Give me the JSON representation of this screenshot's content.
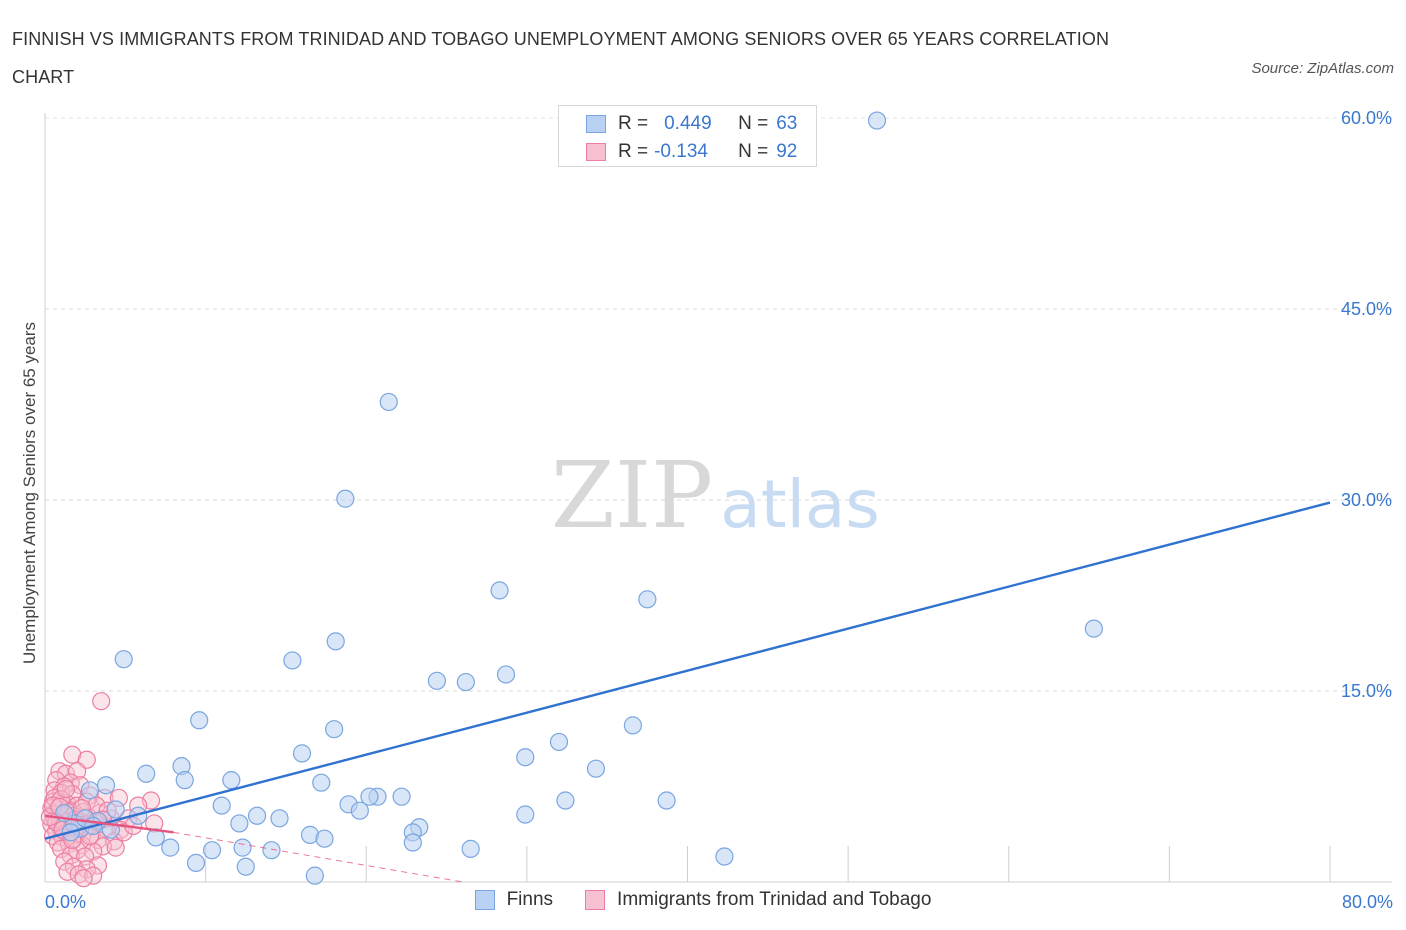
{
  "header": {
    "title": "FINNISH VS IMMIGRANTS FROM TRINIDAD AND TOBAGO UNEMPLOYMENT AMONG SENIORS OVER 65 YEARS CORRELATION CHART",
    "source": "Source: ZipAtlas.com"
  },
  "watermark": {
    "zip": "ZIP",
    "atlas": "atlas"
  },
  "legend": {
    "finns": {
      "r_label": "R =",
      "r_value": "0.449",
      "n_label": "N =",
      "n_value": "63"
    },
    "trinidad": {
      "r_label": "R =",
      "r_value": "-0.134",
      "n_label": "N =",
      "n_value": "92"
    }
  },
  "bottom_legend": {
    "finns": "Finns",
    "trinidad": "Immigrants from Trinidad and Tobago"
  },
  "colors": {
    "finns_fill": "#b9d2f3",
    "finns_stroke": "#7aa6e0",
    "finns_line": "#2f72d0",
    "trin_fill": "#f7c1d1",
    "trin_stroke": "#ec7fa1",
    "trin_line": "#e6557f",
    "axis_label": "#3a78d0"
  },
  "chart_data": {
    "type": "scatter",
    "title": "FINNISH VS IMMIGRANTS FROM TRINIDAD AND TOBAGO UNEMPLOYMENT AMONG SENIORS OVER 65 YEARS CORRELATION CHART",
    "xlabel": "",
    "ylabel": "Unemployment Among Seniors over 65 years",
    "xlim": [
      0,
      80
    ],
    "ylim": [
      0,
      60
    ],
    "x_tick_labels": [
      "0.0%",
      "80.0%"
    ],
    "y_ticks": [
      {
        "value": 15,
        "label": "15.0%"
      },
      {
        "value": 30,
        "label": "30.0%"
      },
      {
        "value": 45,
        "label": "45.0%"
      },
      {
        "value": 60,
        "label": "60.0%"
      }
    ],
    "grid": true,
    "series": [
      {
        "name": "Finns",
        "points": [
          [
            51.8,
            59.8
          ],
          [
            21.4,
            37.7
          ],
          [
            18.7,
            30.1
          ],
          [
            28.3,
            22.9
          ],
          [
            37.5,
            22.2
          ],
          [
            65.3,
            19.9
          ],
          [
            18.1,
            18.9
          ],
          [
            4.9,
            17.5
          ],
          [
            15.4,
            17.4
          ],
          [
            28.7,
            16.3
          ],
          [
            24.4,
            15.8
          ],
          [
            26.2,
            15.7
          ],
          [
            9.6,
            12.7
          ],
          [
            36.6,
            12.3
          ],
          [
            18.0,
            12.0
          ],
          [
            32.0,
            11.0
          ],
          [
            29.9,
            9.8
          ],
          [
            16.0,
            10.1
          ],
          [
            8.5,
            9.1
          ],
          [
            6.3,
            8.5
          ],
          [
            8.7,
            8.0
          ],
          [
            11.6,
            8.0
          ],
          [
            34.3,
            8.9
          ],
          [
            3.8,
            7.6
          ],
          [
            17.2,
            7.8
          ],
          [
            2.8,
            7.2
          ],
          [
            20.7,
            6.7
          ],
          [
            22.2,
            6.7
          ],
          [
            20.2,
            6.7
          ],
          [
            18.9,
            6.1
          ],
          [
            32.4,
            6.4
          ],
          [
            38.7,
            6.4
          ],
          [
            11.0,
            6.0
          ],
          [
            19.6,
            5.6
          ],
          [
            4.4,
            5.7
          ],
          [
            29.9,
            5.3
          ],
          [
            13.2,
            5.2
          ],
          [
            14.6,
            5.0
          ],
          [
            5.8,
            5.2
          ],
          [
            12.1,
            4.6
          ],
          [
            23.3,
            4.3
          ],
          [
            4.1,
            4.1
          ],
          [
            16.5,
            3.7
          ],
          [
            3.3,
            4.8
          ],
          [
            6.9,
            3.5
          ],
          [
            22.9,
            3.9
          ],
          [
            2.2,
            4.2
          ],
          [
            17.4,
            3.4
          ],
          [
            22.9,
            3.1
          ],
          [
            7.8,
            2.7
          ],
          [
            12.3,
            2.7
          ],
          [
            14.1,
            2.5
          ],
          [
            26.5,
            2.6
          ],
          [
            10.4,
            2.5
          ],
          [
            42.3,
            2.0
          ],
          [
            9.4,
            1.5
          ],
          [
            12.5,
            1.2
          ],
          [
            16.8,
            0.5
          ],
          [
            1.8,
            4.6
          ],
          [
            2.5,
            5.0
          ],
          [
            3.0,
            4.4
          ],
          [
            1.2,
            5.4
          ],
          [
            1.6,
            3.9
          ]
        ]
      },
      {
        "name": "Immigrants from Trinidad and Tobago",
        "points": [
          [
            3.5,
            14.2
          ],
          [
            1.7,
            10.0
          ],
          [
            2.6,
            9.6
          ],
          [
            0.9,
            8.7
          ],
          [
            1.3,
            8.5
          ],
          [
            2.0,
            8.7
          ],
          [
            0.7,
            8.0
          ],
          [
            1.6,
            7.8
          ],
          [
            1.2,
            7.5
          ],
          [
            2.2,
            7.6
          ],
          [
            0.6,
            7.2
          ],
          [
            1.0,
            7.0
          ],
          [
            1.7,
            6.9
          ],
          [
            2.8,
            6.8
          ],
          [
            3.7,
            6.6
          ],
          [
            4.6,
            6.6
          ],
          [
            6.6,
            6.4
          ],
          [
            0.5,
            6.3
          ],
          [
            1.1,
            6.2
          ],
          [
            1.4,
            6.1
          ],
          [
            2.0,
            6.0
          ],
          [
            5.8,
            6.0
          ],
          [
            0.4,
            5.8
          ],
          [
            0.8,
            5.7
          ],
          [
            1.5,
            5.6
          ],
          [
            2.4,
            5.5
          ],
          [
            3.4,
            5.4
          ],
          [
            0.5,
            5.3
          ],
          [
            1.0,
            5.2
          ],
          [
            1.8,
            5.2
          ],
          [
            2.7,
            5.1
          ],
          [
            4.1,
            5.0
          ],
          [
            5.2,
            5.0
          ],
          [
            0.6,
            4.9
          ],
          [
            1.2,
            4.8
          ],
          [
            2.2,
            4.7
          ],
          [
            3.1,
            4.7
          ],
          [
            6.8,
            4.6
          ],
          [
            0.4,
            4.5
          ],
          [
            0.9,
            4.4
          ],
          [
            1.6,
            4.3
          ],
          [
            2.5,
            4.3
          ],
          [
            3.8,
            4.2
          ],
          [
            4.7,
            4.1
          ],
          [
            0.7,
            4.0
          ],
          [
            1.3,
            3.9
          ],
          [
            2.0,
            3.8
          ],
          [
            2.9,
            3.7
          ],
          [
            0.5,
            3.6
          ],
          [
            1.1,
            3.5
          ],
          [
            1.8,
            3.4
          ],
          [
            3.3,
            3.3
          ],
          [
            4.3,
            3.2
          ],
          [
            0.8,
            3.1
          ],
          [
            1.5,
            3.0
          ],
          [
            2.3,
            2.9
          ],
          [
            3.6,
            2.8
          ],
          [
            4.4,
            2.7
          ],
          [
            1.0,
            2.6
          ],
          [
            2.0,
            2.5
          ],
          [
            3.0,
            2.4
          ],
          [
            1.6,
            2.1
          ],
          [
            2.5,
            2.0
          ],
          [
            1.2,
            1.6
          ],
          [
            3.3,
            1.3
          ],
          [
            1.8,
            1.2
          ],
          [
            2.6,
            1.0
          ],
          [
            1.4,
            0.8
          ],
          [
            2.1,
            0.6
          ],
          [
            3.0,
            0.5
          ],
          [
            2.4,
            0.3
          ],
          [
            0.9,
            5.0
          ],
          [
            1.4,
            5.5
          ],
          [
            0.6,
            6.6
          ],
          [
            2.6,
            6.3
          ],
          [
            1.0,
            6.5
          ],
          [
            3.2,
            6.0
          ],
          [
            0.7,
            4.7
          ],
          [
            1.9,
            4.9
          ],
          [
            2.8,
            3.6
          ],
          [
            4.9,
            3.9
          ],
          [
            0.3,
            5.1
          ],
          [
            1.1,
            4.1
          ],
          [
            2.3,
            5.8
          ],
          [
            3.9,
            5.6
          ],
          [
            0.5,
            6.0
          ],
          [
            1.7,
            3.3
          ],
          [
            5.5,
            4.4
          ],
          [
            0.9,
            5.9
          ],
          [
            2.1,
            4.4
          ],
          [
            1.3,
            7.3
          ],
          [
            3.6,
            4.9
          ]
        ]
      }
    ],
    "trendlines": [
      {
        "series": "Finns",
        "x": [
          0,
          80
        ],
        "y": [
          3.4,
          29.8
        ],
        "style": "solid"
      },
      {
        "series": "Immigrants from Trinidad and Tobago",
        "x": [
          0,
          8
        ],
        "y": [
          5.2,
          3.9
        ],
        "style": "solid"
      },
      {
        "series": "Immigrants from Trinidad and Tobago",
        "x": [
          8,
          26
        ],
        "y": [
          3.9,
          0.0
        ],
        "style": "dashed"
      }
    ]
  }
}
